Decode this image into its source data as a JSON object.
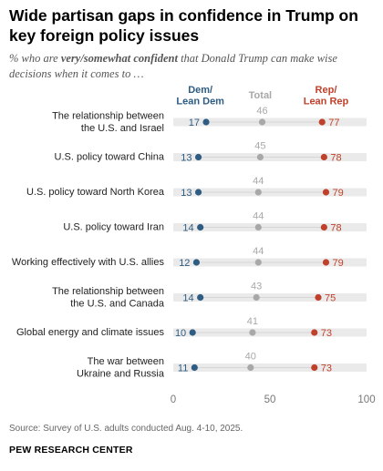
{
  "title": "Wide partisan gaps in confidence in Trump on key foreign policy issues",
  "subtitle": {
    "prefix": "% who are ",
    "emphasis": "very/somewhat confident",
    "suffix": " that Donald Trump can make wise decisions when it comes to …"
  },
  "source": "Source: Survey of U.S. adults conducted Aug. 4-10, 2025.",
  "organization": "PEW RESEARCH CENTER",
  "colors": {
    "dem": "#2E5C82",
    "total": "#A8A8A8",
    "rep": "#C0412B",
    "track": "#EAEAEA",
    "axis_text": "#777777"
  },
  "chart_data": {
    "type": "dot",
    "categories": [
      "The relationship between\nthe U.S. and Israel",
      "U.S. policy toward China",
      "U.S. policy toward North Korea",
      "U.S. policy toward Iran",
      "Working effectively with U.S. allies",
      "The relationship between\nthe U.S. and Canada",
      "Global energy and climate issues",
      "The war between\nUkraine and Russia"
    ],
    "series": [
      {
        "name": "Dem/\nLean Dem",
        "key": "dem",
        "values": [
          17,
          13,
          13,
          14,
          12,
          14,
          10,
          11
        ]
      },
      {
        "name": "Total",
        "key": "total",
        "values": [
          46,
          45,
          44,
          44,
          44,
          43,
          41,
          40
        ]
      },
      {
        "name": "Rep/\nLean Rep",
        "key": "rep",
        "values": [
          77,
          78,
          79,
          78,
          79,
          75,
          73,
          73
        ]
      }
    ],
    "xlim": [
      0,
      100
    ],
    "xticks": [
      "0",
      "50",
      "100"
    ]
  }
}
